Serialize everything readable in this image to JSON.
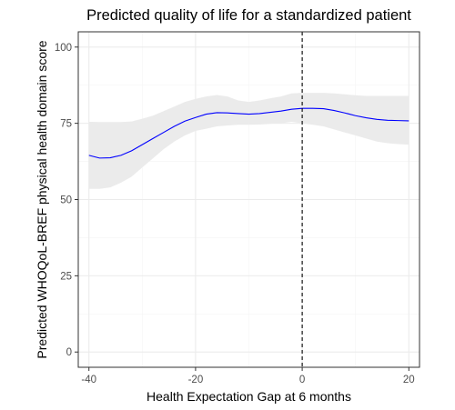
{
  "colors": {
    "line": "#0000ff",
    "ribbon": "#ebebeb",
    "grid_major": "#ebebeb",
    "grid_minor": "#f5f5f5",
    "panel_border": "#333333",
    "vline": "#000000"
  },
  "chart_data": {
    "type": "line",
    "title": "Predicted quality of life for a standardized patient",
    "xlabel": "Health Expectation Gap at 6 months",
    "ylabel": "Predicted WHOQoL-BREF physical health domain score",
    "xlim": [
      -42,
      22
    ],
    "ylim": [
      -5,
      105
    ],
    "xticks": [
      -40,
      -20,
      0,
      20
    ],
    "xtick_labels": [
      "-40",
      "-20",
      "0",
      "20"
    ],
    "yticks": [
      0,
      25,
      50,
      75,
      100
    ],
    "ytick_labels": [
      "0",
      "25",
      "50",
      "75",
      "100"
    ],
    "grid": true,
    "legend": "none",
    "reference_line": {
      "x": 0,
      "style": "dashed"
    },
    "series": [
      {
        "x": [
          -40,
          -38,
          -36,
          -34,
          -32,
          -30,
          -28,
          -26,
          -24,
          -22,
          -20,
          -18,
          -16,
          -14,
          -12,
          -10,
          -8,
          -6,
          -4,
          -2,
          0,
          2,
          4,
          6,
          8,
          10,
          12,
          14,
          16,
          18,
          20
        ],
        "y": [
          64.5,
          63.6,
          63.7,
          64.5,
          66.0,
          68.0,
          70.0,
          72.0,
          74.0,
          75.7,
          76.9,
          78.0,
          78.5,
          78.4,
          78.2,
          78.0,
          78.2,
          78.6,
          79.0,
          79.6,
          79.9,
          79.9,
          79.8,
          79.2,
          78.4,
          77.5,
          76.8,
          76.3,
          76.0,
          75.9,
          75.8
        ],
        "lower": [
          53.5,
          53.5,
          54.0,
          55.5,
          57.5,
          60.5,
          63.5,
          66.5,
          69.0,
          71.0,
          72.5,
          73.2,
          74.0,
          74.3,
          74.5,
          74.5,
          74.6,
          74.8,
          75.0,
          75.5,
          75.0,
          74.5,
          74.0,
          73.0,
          72.0,
          71.0,
          70.0,
          69.0,
          68.5,
          68.2,
          68.0
        ],
        "upper": [
          75.5,
          75.4,
          75.4,
          75.4,
          75.6,
          76.5,
          77.5,
          79.0,
          80.5,
          82.0,
          83.0,
          83.8,
          84.3,
          83.8,
          82.5,
          82.0,
          82.5,
          83.2,
          83.8,
          84.8,
          85.0,
          85.0,
          85.0,
          84.8,
          84.5,
          84.2,
          84.0,
          84.0,
          84.0,
          84.0,
          84.0
        ]
      }
    ]
  }
}
